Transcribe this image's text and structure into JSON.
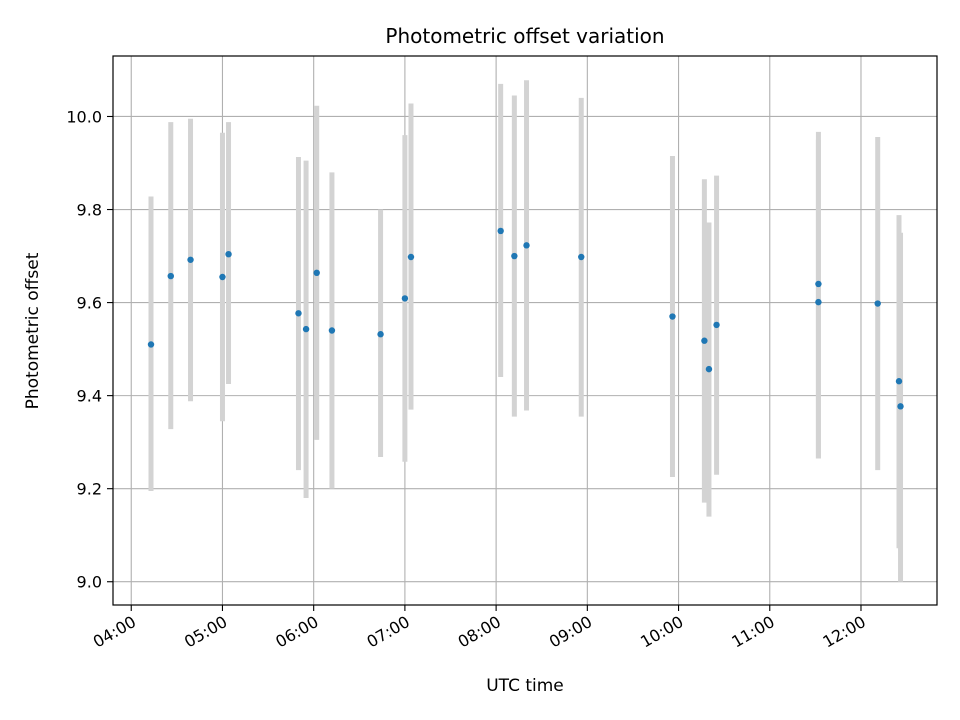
{
  "chart_data": {
    "type": "scatter",
    "title": "Photometric offset variation",
    "xlabel": "UTC time",
    "ylabel": "Photometric offset",
    "x_ticks": [
      "04:00",
      "05:00",
      "06:00",
      "07:00",
      "08:00",
      "09:00",
      "10:00",
      "11:00",
      "12:00"
    ],
    "y_ticks": [
      "9.0",
      "9.2",
      "9.4",
      "9.6",
      "9.8",
      "10.0"
    ],
    "xlim": [
      "03:48",
      "12:50"
    ],
    "ylim": [
      8.95,
      10.13
    ],
    "grid": true,
    "point_color": "#1f77b4",
    "errorbar_color": "#d3d3d3",
    "points": [
      {
        "x": "04:13",
        "y": 9.51,
        "ylow": 9.195,
        "yhigh": 9.828
      },
      {
        "x": "04:26",
        "y": 9.657,
        "ylow": 9.328,
        "yhigh": 9.988
      },
      {
        "x": "04:39",
        "y": 9.692,
        "ylow": 9.388,
        "yhigh": 9.995
      },
      {
        "x": "05:00",
        "y": 9.655,
        "ylow": 9.345,
        "yhigh": 9.965
      },
      {
        "x": "05:04",
        "y": 9.704,
        "ylow": 9.425,
        "yhigh": 9.988
      },
      {
        "x": "05:50",
        "y": 9.577,
        "ylow": 9.24,
        "yhigh": 9.913
      },
      {
        "x": "05:55",
        "y": 9.543,
        "ylow": 9.18,
        "yhigh": 9.905
      },
      {
        "x": "06:02",
        "y": 9.664,
        "ylow": 9.305,
        "yhigh": 10.023
      },
      {
        "x": "06:12",
        "y": 9.54,
        "ylow": 9.2,
        "yhigh": 9.88
      },
      {
        "x": "06:44",
        "y": 9.532,
        "ylow": 9.268,
        "yhigh": 9.8
      },
      {
        "x": "07:00",
        "y": 9.609,
        "ylow": 9.258,
        "yhigh": 9.96
      },
      {
        "x": "07:04",
        "y": 9.698,
        "ylow": 9.37,
        "yhigh": 10.028
      },
      {
        "x": "08:03",
        "y": 9.754,
        "ylow": 9.44,
        "yhigh": 10.07
      },
      {
        "x": "08:12",
        "y": 9.7,
        "ylow": 9.355,
        "yhigh": 10.045
      },
      {
        "x": "08:20",
        "y": 9.723,
        "ylow": 9.368,
        "yhigh": 10.078
      },
      {
        "x": "08:56",
        "y": 9.698,
        "ylow": 9.355,
        "yhigh": 10.04
      },
      {
        "x": "09:56",
        "y": 9.57,
        "ylow": 9.225,
        "yhigh": 9.915
      },
      {
        "x": "10:17",
        "y": 9.518,
        "ylow": 9.17,
        "yhigh": 9.865
      },
      {
        "x": "10:20",
        "y": 9.457,
        "ylow": 9.14,
        "yhigh": 9.772
      },
      {
        "x": "10:25",
        "y": 9.552,
        "ylow": 9.23,
        "yhigh": 9.873
      },
      {
        "x": "11:32",
        "y": 9.64,
        "ylow": 9.265,
        "yhigh": 9.95
      },
      {
        "x": "11:32",
        "y": 9.601,
        "ylow": 9.265,
        "yhigh": 9.967
      },
      {
        "x": "12:11",
        "y": 9.598,
        "ylow": 9.24,
        "yhigh": 9.956
      },
      {
        "x": "12:25",
        "y": 9.431,
        "ylow": 9.072,
        "yhigh": 9.788
      },
      {
        "x": "12:26",
        "y": 9.377,
        "ylow": 9.0,
        "yhigh": 9.75
      }
    ]
  }
}
